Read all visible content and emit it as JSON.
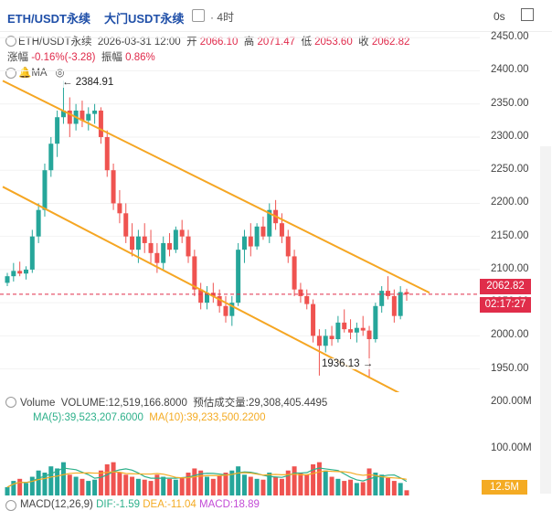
{
  "header": {
    "symbol": "ETH/USDT永续",
    "exchange_title": "大门USDT永续",
    "interval": "· 4时 ",
    "seconds_label": "0s"
  },
  "ohlc": {
    "symbol": "ETH/USDT永续",
    "datetime": "2026-03-31 12:00",
    "open_label": "开",
    "open": "2066.10",
    "high_label": "高",
    "high": "2071.47",
    "low_label": "低",
    "low": "2053.60",
    "close_label": "收",
    "close": "2062.82",
    "change_label": "涨幅",
    "change": "-0.16%(-3.28)",
    "amplitude_label": "振幅",
    "amplitude": "0.86%"
  },
  "indicators": {
    "ma_label": "MA"
  },
  "price_axis": [
    "2450.00",
    "2400.00",
    "2350.00",
    "2300.00",
    "2250.00",
    "2200.00",
    "2150.00",
    "2100.00",
    "2050.00",
    "2000.00",
    "1950.00"
  ],
  "badges": {
    "last_price": "2062.82",
    "countdown": "02:17:27",
    "volume_last": "12.5M"
  },
  "annotations": {
    "high": "2384.91",
    "low": "1936.13"
  },
  "volume": {
    "label": "Volume",
    "value_text": "VOLUME:12,519,166.8000",
    "estimate_text": "预估成交量:29,308,405.4495",
    "ma5_text": "MA(5):39,523,207.6000",
    "ma10_text": "MA(10):39,233,500.2200",
    "axis": [
      "200.00M",
      "100.00M"
    ]
  },
  "macd": {
    "text": "MACD(12,26,9)",
    "dif": "DIF:-1.59",
    "dea": "DEA:-11.04",
    "macd": "MACD:18.89"
  },
  "colors": {
    "up": "#26a69a",
    "down": "#ef5350",
    "channel": "#f5a623",
    "price_badge": "#e02d4a",
    "ma5": "#2db08a",
    "ma10": "#f4ab23"
  },
  "chart_data": {
    "type": "candlestick",
    "y_range": [
      1915,
      2460
    ],
    "candles": [
      [
        2080,
        2095,
        2075,
        2090
      ],
      [
        2090,
        2110,
        2082,
        2098
      ],
      [
        2098,
        2112,
        2090,
        2094
      ],
      [
        2094,
        2105,
        2085,
        2100
      ],
      [
        2100,
        2160,
        2095,
        2150
      ],
      [
        2150,
        2200,
        2140,
        2190
      ],
      [
        2190,
        2260,
        2180,
        2250
      ],
      [
        2250,
        2300,
        2240,
        2290
      ],
      [
        2290,
        2340,
        2270,
        2330
      ],
      [
        2330,
        2385,
        2320,
        2340
      ],
      [
        2340,
        2360,
        2300,
        2320
      ],
      [
        2320,
        2350,
        2310,
        2340
      ],
      [
        2340,
        2355,
        2315,
        2325
      ],
      [
        2325,
        2345,
        2310,
        2335
      ],
      [
        2335,
        2350,
        2320,
        2340
      ],
      [
        2340,
        2345,
        2290,
        2300
      ],
      [
        2300,
        2310,
        2240,
        2250
      ],
      [
        2250,
        2260,
        2190,
        2200
      ],
      [
        2200,
        2220,
        2170,
        2185
      ],
      [
        2185,
        2200,
        2140,
        2150
      ],
      [
        2150,
        2170,
        2120,
        2130
      ],
      [
        2130,
        2160,
        2110,
        2150
      ],
      [
        2150,
        2170,
        2125,
        2140
      ],
      [
        2140,
        2160,
        2110,
        2125
      ],
      [
        2125,
        2140,
        2095,
        2110
      ],
      [
        2110,
        2150,
        2100,
        2140
      ],
      [
        2140,
        2155,
        2120,
        2130
      ],
      [
        2130,
        2165,
        2125,
        2160
      ],
      [
        2160,
        2175,
        2140,
        2150
      ],
      [
        2150,
        2160,
        2110,
        2120
      ],
      [
        2120,
        2130,
        2060,
        2070
      ],
      [
        2070,
        2080,
        2040,
        2050
      ],
      [
        2050,
        2075,
        2040,
        2065
      ],
      [
        2065,
        2080,
        2050,
        2060
      ],
      [
        2060,
        2070,
        2035,
        2045
      ],
      [
        2045,
        2060,
        2020,
        2030
      ],
      [
        2030,
        2060,
        2015,
        2050
      ],
      [
        2050,
        2140,
        2045,
        2130
      ],
      [
        2130,
        2160,
        2110,
        2150
      ],
      [
        2150,
        2170,
        2120,
        2135
      ],
      [
        2135,
        2170,
        2130,
        2165
      ],
      [
        2165,
        2180,
        2145,
        2150
      ],
      [
        2150,
        2200,
        2140,
        2190
      ],
      [
        2190,
        2205,
        2160,
        2170
      ],
      [
        2170,
        2185,
        2140,
        2150
      ],
      [
        2150,
        2160,
        2110,
        2120
      ],
      [
        2120,
        2130,
        2060,
        2070
      ],
      [
        2070,
        2080,
        2050,
        2060
      ],
      [
        2060,
        2070,
        2040,
        2048
      ],
      [
        2048,
        2055,
        1990,
        2000
      ],
      [
        2000,
        2010,
        1940,
        1985
      ],
      [
        1985,
        2010,
        1975,
        2000
      ],
      [
        2000,
        2015,
        1985,
        1995
      ],
      [
        1995,
        2030,
        1990,
        2020
      ],
      [
        2020,
        2040,
        2005,
        2010
      ],
      [
        2010,
        2025,
        1995,
        2005
      ],
      [
        2005,
        2020,
        1990,
        2012
      ],
      [
        2012,
        2030,
        2000,
        2008
      ],
      [
        2008,
        2015,
        1936,
        1995
      ],
      [
        1995,
        2050,
        1990,
        2045
      ],
      [
        2045,
        2075,
        2035,
        2068
      ],
      [
        2068,
        2090,
        2055,
        2060
      ],
      [
        2060,
        2070,
        2020,
        2030
      ],
      [
        2030,
        2075,
        2025,
        2066
      ],
      [
        2066,
        2071,
        2053,
        2063
      ]
    ],
    "volumes": [
      20,
      35,
      40,
      30,
      45,
      60,
      55,
      70,
      65,
      80,
      50,
      45,
      40,
      35,
      38,
      60,
      75,
      80,
      55,
      50,
      45,
      40,
      38,
      35,
      50,
      45,
      40,
      38,
      42,
      55,
      65,
      60,
      45,
      40,
      48,
      55,
      60,
      70,
      50,
      45,
      40,
      38,
      55,
      45,
      40,
      60,
      70,
      55,
      50,
      75,
      80,
      60,
      45,
      40,
      35,
      38,
      30,
      32,
      65,
      55,
      50,
      42,
      35,
      30,
      12.5
    ],
    "volume_y_max": 220,
    "channel_upper": [
      [
        2385,
        0
      ],
      [
        2065,
        1
      ]
    ],
    "channel_lower": [
      [
        2225,
        0
      ],
      [
        1890,
        1
      ]
    ]
  }
}
